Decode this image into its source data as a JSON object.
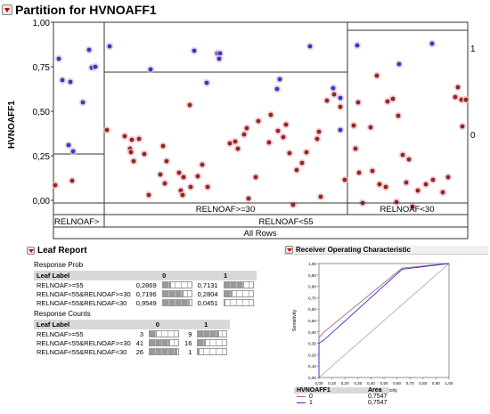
{
  "title": "Partition for HVNOAFF1",
  "partition": {
    "y_axis_label": "HVNOAFF1",
    "y_ticks": [
      "1,00",
      "0,75",
      "0,50",
      "0,25",
      "0,00"
    ],
    "right_labels": [
      "1",
      "0"
    ],
    "split_labels": [
      "RELNOAF>",
      "RELNOAF>=30",
      "RELNOAF<55",
      "RELNOAF<30",
      "All Rows"
    ],
    "colors": {
      "level_1": "#1f3fd6",
      "level_0": "#8b2a1e",
      "halo": "#f3b3c3"
    }
  },
  "leaf_report": {
    "title": "Leaf Report",
    "prob_title": "Response Prob",
    "counts_title": "Response Counts",
    "col_leaf": "Leaf Label",
    "col_0": "0",
    "col_1": "1",
    "prob_rows": [
      {
        "label": "RELNOAF>=55",
        "p0": "0,2869",
        "p1": "0,7131",
        "v0": 0.2869,
        "v1": 0.7131
      },
      {
        "label": "RELNOAF<55&RELNOAF>=30",
        "p0": "0,7196",
        "p1": "0,2804",
        "v0": 0.7196,
        "v1": 0.2804
      },
      {
        "label": "RELNOAF<55&RELNOAF<30",
        "p0": "0,9549",
        "p1": "0,0451",
        "v0": 0.9549,
        "v1": 0.0451
      }
    ],
    "count_rows": [
      {
        "label": "RELNOAF>=55",
        "c0": "3",
        "c1": "9",
        "v0": 0.25,
        "v1": 0.75
      },
      {
        "label": "RELNOAF<55&RELNOAF>=30",
        "c0": "41",
        "c1": "16",
        "v0": 0.72,
        "v1": 0.28
      },
      {
        "label": "RELNOAF<55&RELNOAF<30",
        "c0": "26",
        "c1": "1",
        "v0": 0.96,
        "v1": 0.04
      }
    ]
  },
  "roc": {
    "title": "Receiver Operating Characteristic",
    "xlabel": "1-Specificity",
    "ylabel": "Sensitivity",
    "ticks": [
      "0,00",
      "0,10",
      "0,20",
      "0,30",
      "0,40",
      "0,50",
      "0,60",
      "0,70",
      "0,80",
      "0,90",
      "1,00"
    ],
    "legend_header_var": "HVNOAFF1",
    "legend_header_area": "Area",
    "legend": [
      {
        "level": "0",
        "area": "0,7547",
        "color": "#b06080"
      },
      {
        "level": "1",
        "area": "0,7547",
        "color": "#3a2fc0"
      }
    ]
  },
  "chart_data": {
    "type": "line",
    "title": "Receiver Operating Characteristic",
    "xlabel": "1-Specificity",
    "ylabel": "Sensitivity",
    "xlim": [
      0,
      1
    ],
    "ylim": [
      0,
      1
    ],
    "series": [
      {
        "name": "0",
        "x": [
          0,
          0,
          0.04,
          0.64,
          1
        ],
        "y": [
          0,
          0.35,
          0.4,
          0.96,
          1
        ]
      },
      {
        "name": "1",
        "x": [
          0,
          0,
          0.04,
          0.64,
          1
        ],
        "y": [
          0,
          0.3,
          0.33,
          0.95,
          1
        ]
      }
    ]
  }
}
